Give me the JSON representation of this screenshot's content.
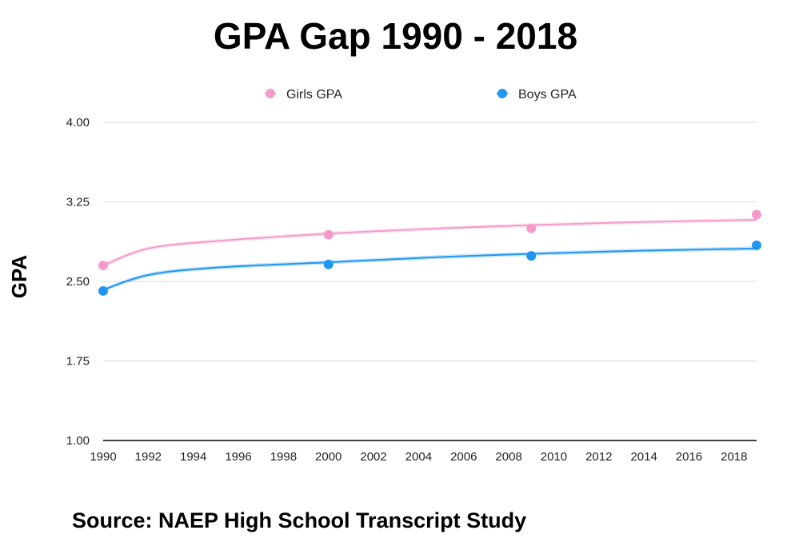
{
  "chart_data": {
    "type": "scatter",
    "title": "GPA Gap 1990 - 2018",
    "xlabel": "",
    "ylabel": "GPA",
    "xlim": [
      1990,
      2019
    ],
    "ylim": [
      1.0,
      4.0
    ],
    "x_ticks": [
      1990,
      1992,
      1994,
      1996,
      1998,
      2000,
      2002,
      2004,
      2006,
      2008,
      2010,
      2012,
      2014,
      2016,
      2018
    ],
    "y_ticks": [
      "1.00",
      "1.75",
      "2.50",
      "3.25",
      "4.00"
    ],
    "grid": true,
    "legend_position": "top",
    "series": [
      {
        "name": "Girls GPA",
        "color": "#f59bcb",
        "x": [
          1990,
          2000,
          2009,
          2019
        ],
        "y": [
          2.65,
          2.94,
          3.0,
          3.13
        ],
        "trend": [
          [
            1990,
            2.65
          ],
          [
            1992,
            2.81
          ],
          [
            1995,
            2.88
          ],
          [
            2000,
            2.95
          ],
          [
            2005,
            3.0
          ],
          [
            2009,
            3.03
          ],
          [
            2014,
            3.06
          ],
          [
            2019,
            3.08
          ]
        ]
      },
      {
        "name": "Boys GPA",
        "color": "#2196f0",
        "x": [
          1990,
          2000,
          2009,
          2019
        ],
        "y": [
          2.41,
          2.66,
          2.74,
          2.84
        ],
        "trend": [
          [
            1990,
            2.42
          ],
          [
            1992,
            2.56
          ],
          [
            1995,
            2.63
          ],
          [
            2000,
            2.68
          ],
          [
            2005,
            2.73
          ],
          [
            2009,
            2.76
          ],
          [
            2014,
            2.79
          ],
          [
            2019,
            2.81
          ]
        ]
      }
    ]
  },
  "footer": {
    "source": "Source: NAEP High School Transcript Study"
  }
}
